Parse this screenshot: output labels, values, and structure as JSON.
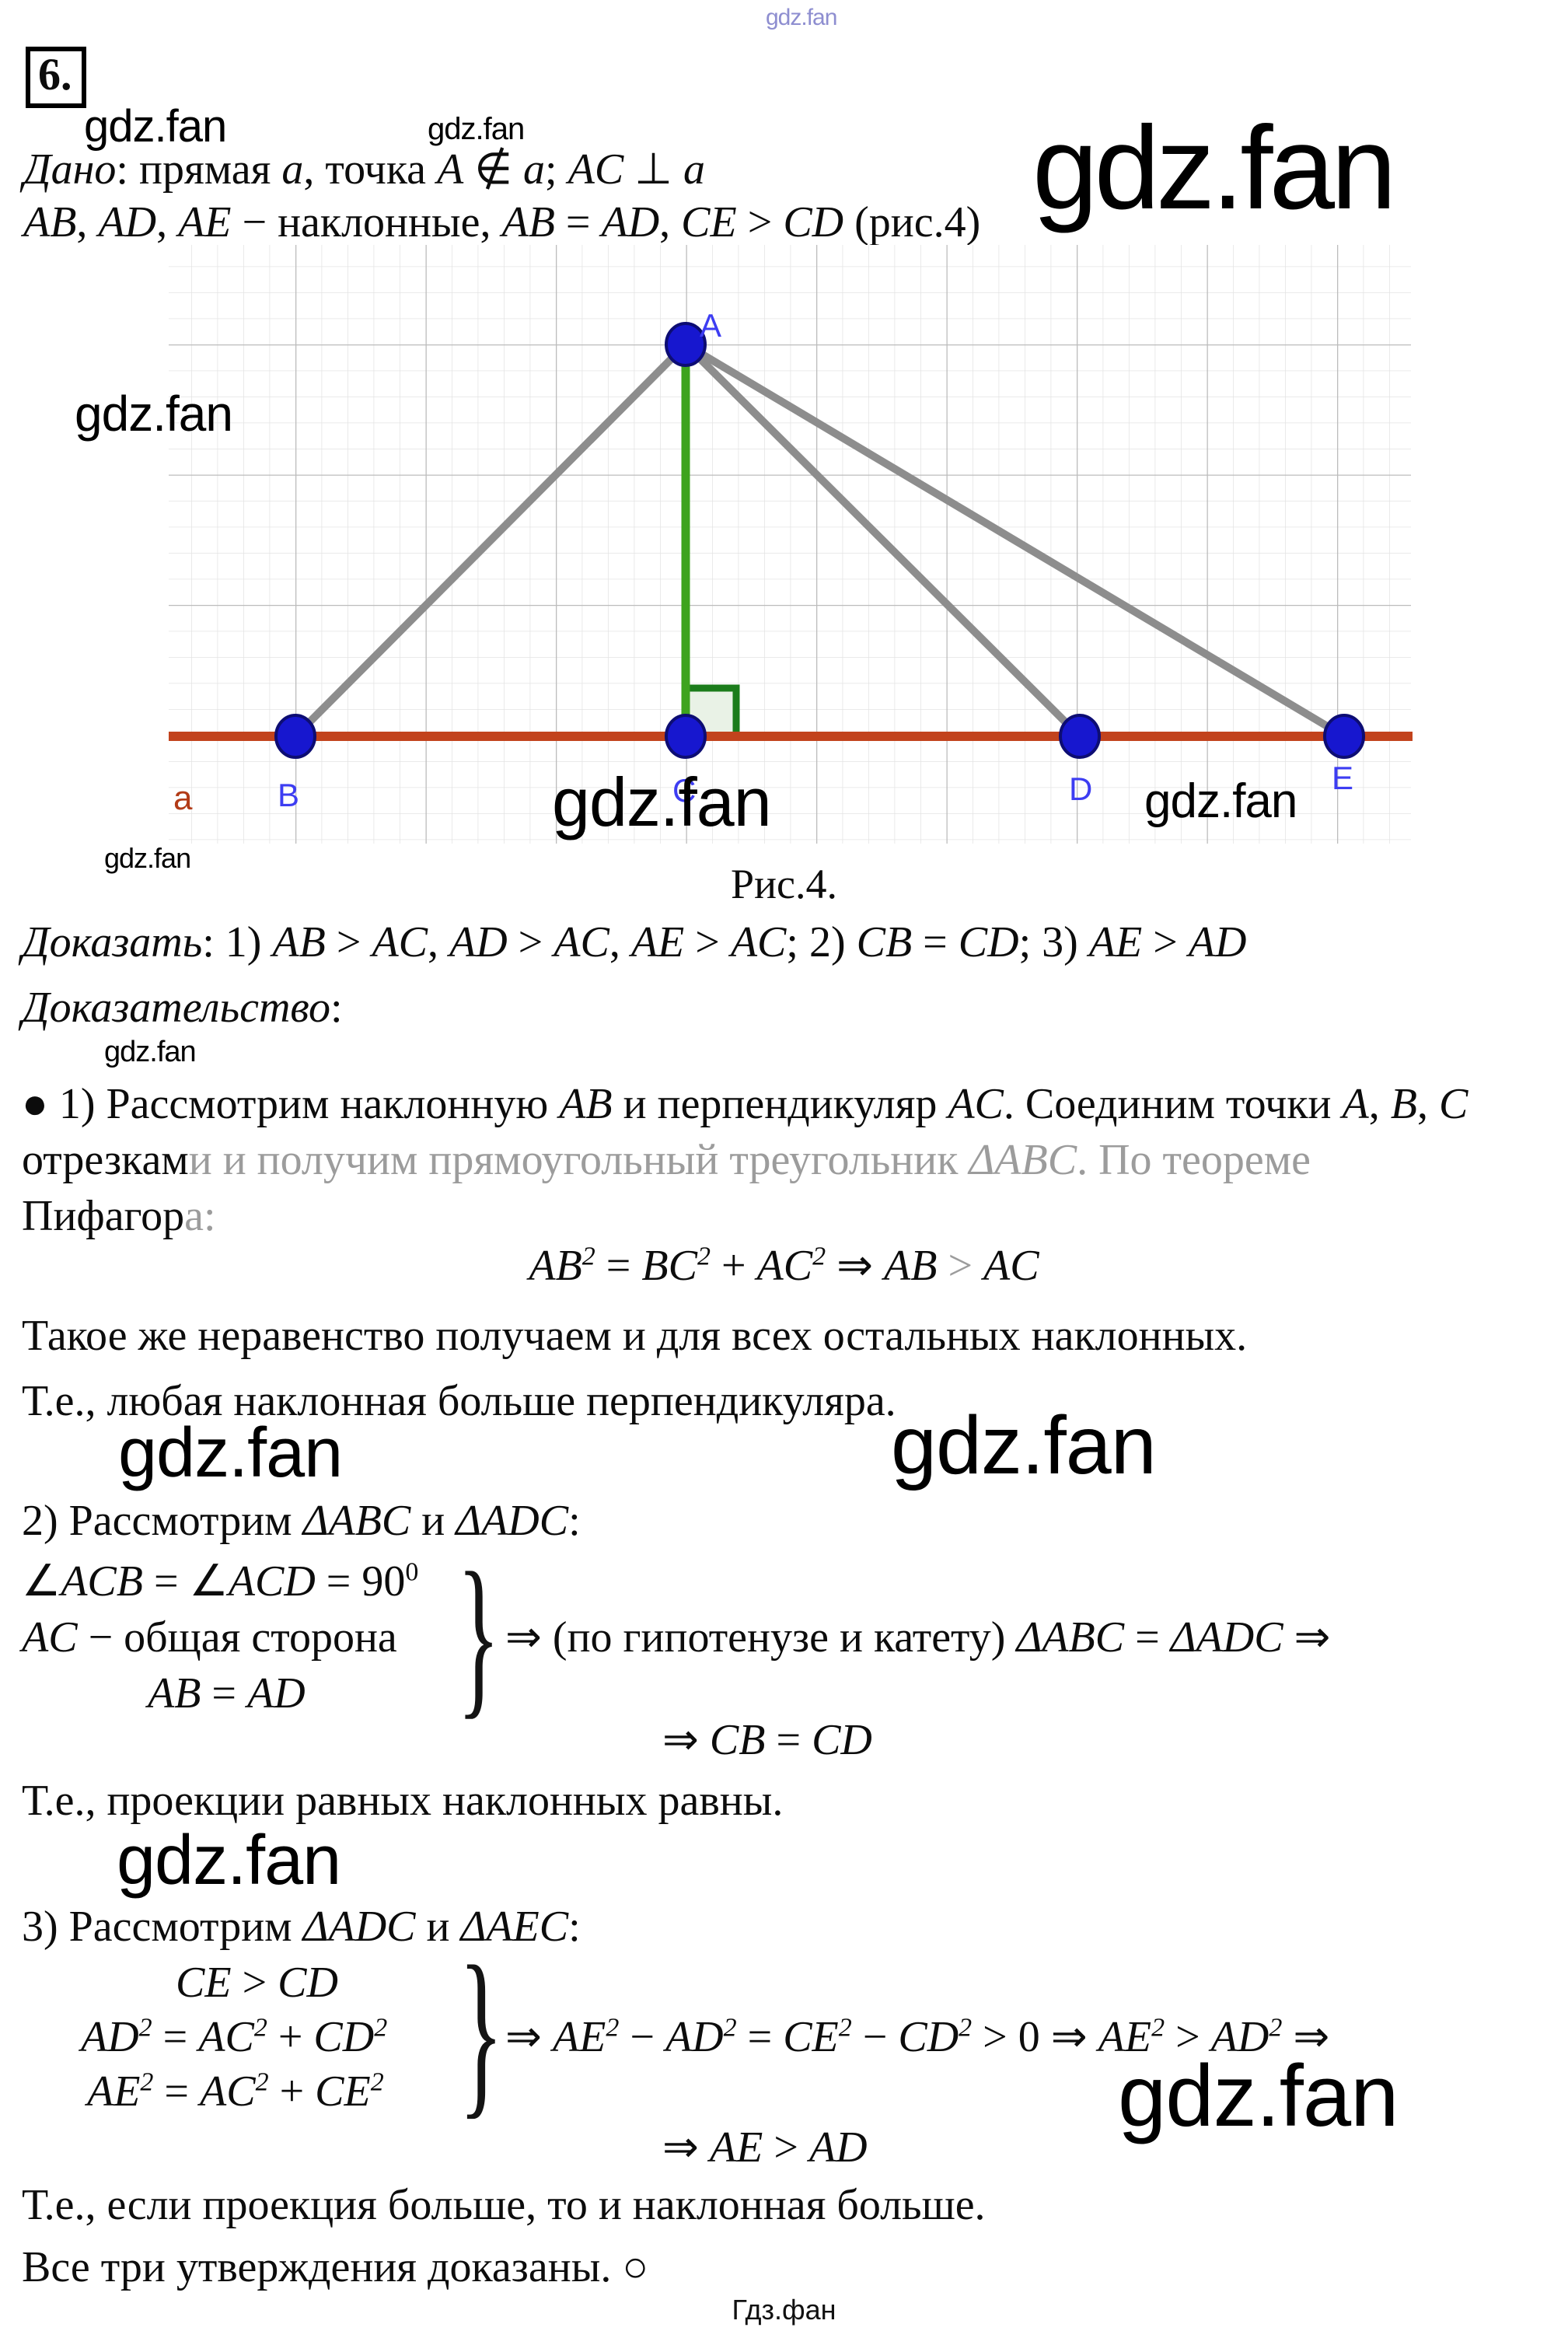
{
  "watermark": {
    "text": "gdz.fan"
  },
  "header": {
    "problem_number": "6.",
    "given_line1": [
      {
        "t": "Дано",
        "c": "it"
      },
      {
        "t": ": прямая "
      },
      {
        "t": "a",
        "c": "it"
      },
      {
        "t": ", точка "
      },
      {
        "t": "A",
        "c": "it"
      },
      {
        "t": " ∉ "
      },
      {
        "t": "a",
        "c": "it"
      },
      {
        "t": "; "
      },
      {
        "t": "AC",
        "c": "it"
      },
      {
        "t": " ⊥ "
      },
      {
        "t": "a",
        "c": "it"
      }
    ],
    "given_line2": [
      {
        "t": "AB",
        "c": "it"
      },
      {
        "t": ", "
      },
      {
        "t": "AD",
        "c": "it"
      },
      {
        "t": ", "
      },
      {
        "t": "AE",
        "c": "it"
      },
      {
        "t": " − наклонные, "
      },
      {
        "t": "AB",
        "c": "it"
      },
      {
        "t": " = "
      },
      {
        "t": "AD",
        "c": "it"
      },
      {
        "t": ", "
      },
      {
        "t": "CE",
        "c": "it"
      },
      {
        "t": " > "
      },
      {
        "t": "CD",
        "c": "it"
      },
      {
        "t": " (рис.4)"
      }
    ]
  },
  "figure": {
    "caption": "Рис.4.",
    "labels": {
      "A": "A",
      "B": "B",
      "C": "C",
      "D": "D",
      "E": "E",
      "line": "a"
    },
    "colors": {
      "line_a": "#c2431d",
      "perpendicular": "#3ea31e",
      "angle_marker": "#1b7c1b",
      "angle_marker_fill": "#e9f2e6",
      "oblique": "#8d8d8d",
      "point": "#1717cf",
      "point_outline": "#0d0d73",
      "point_label": "#3d3df2",
      "line_label": "#b23b17",
      "grid_minor": "#e4e4e4",
      "grid_major": "#bcbcbc"
    }
  },
  "statements": {
    "to_prove": [
      {
        "t": "Доказать",
        "c": "it"
      },
      {
        "t": ": 1) "
      },
      {
        "t": "AB",
        "c": "it"
      },
      {
        "t": " > "
      },
      {
        "t": "AC",
        "c": "it"
      },
      {
        "t": ", "
      },
      {
        "t": "AD",
        "c": "it"
      },
      {
        "t": " > "
      },
      {
        "t": "AC",
        "c": "it"
      },
      {
        "t": ", "
      },
      {
        "t": "AE",
        "c": "it"
      },
      {
        "t": " > "
      },
      {
        "t": "AC",
        "c": "it"
      },
      {
        "t": "; 2) "
      },
      {
        "t": "CB",
        "c": "it"
      },
      {
        "t": " = "
      },
      {
        "t": "CD",
        "c": "it"
      },
      {
        "t": "; 3) "
      },
      {
        "t": "AE",
        "c": "it"
      },
      {
        "t": " > "
      },
      {
        "t": "AD",
        "c": "it"
      }
    ],
    "proof_title": [
      {
        "t": "Доказательство",
        "c": "it"
      },
      {
        "t": ":"
      }
    ]
  },
  "proof": {
    "step1": {
      "line1": [
        {
          "t": "● 1) Рассмотрим наклонную "
        },
        {
          "t": "AB",
          "c": "it"
        },
        {
          "t": " и перпендикуляр "
        },
        {
          "t": "AC",
          "c": "it"
        },
        {
          "t": ". Соединим точки "
        },
        {
          "t": "A",
          "c": "it"
        },
        {
          "t": ", "
        },
        {
          "t": "B",
          "c": "it"
        },
        {
          "t": ", "
        },
        {
          "t": "C",
          "c": "it"
        }
      ],
      "line2": [
        {
          "t": "отрезкам"
        },
        {
          "t": "и и получим прямоугольный треугольник ",
          "c": "gr"
        },
        {
          "t": "ΔABC",
          "c": "gr it"
        },
        {
          "t": ". По теореме",
          "c": "gr"
        }
      ],
      "line3": [
        {
          "t": "Пифагор"
        },
        {
          "t": "а:",
          "c": "gr"
        }
      ],
      "equation": [
        {
          "t": "AB",
          "c": "it"
        },
        {
          "t": "2",
          "c": "sp it"
        },
        {
          "t": " = "
        },
        {
          "t": "BC",
          "c": "it"
        },
        {
          "t": "2",
          "c": "sp it"
        },
        {
          "t": " + "
        },
        {
          "t": "AC",
          "c": "it"
        },
        {
          "t": "2",
          "c": "sp it"
        },
        {
          "t": " ⇒ "
        },
        {
          "t": "AB",
          "c": "it"
        },
        {
          "t": " "
        },
        {
          "t": ">",
          "c": "gr"
        },
        {
          "t": " "
        },
        {
          "t": "AC",
          "c": "it"
        }
      ]
    },
    "para1": "Такое же неравенство получаем и для всех остальных наклонных.",
    "para2": "Т.е., любая наклонная больше перпендикуляра.",
    "step2": {
      "head": [
        {
          "t": "2) Рассмотрим "
        },
        {
          "t": "ΔABC",
          "c": "it"
        },
        {
          "t": " и "
        },
        {
          "t": "ΔADC",
          "c": "it"
        },
        {
          "t": ":"
        }
      ],
      "row1": [
        {
          "t": "∠"
        },
        {
          "t": "ACB",
          "c": "it"
        },
        {
          "t": " = ∠"
        },
        {
          "t": "ACD",
          "c": "it"
        },
        {
          "t": " = 90"
        },
        {
          "t": "0",
          "c": "sp"
        }
      ],
      "row2": [
        {
          "t": "AC",
          "c": "it"
        },
        {
          "t": " − общая сторона"
        }
      ],
      "row3": [
        {
          "t": "AB",
          "c": "it"
        },
        {
          "t": " = "
        },
        {
          "t": "AD",
          "c": "it"
        }
      ],
      "brace": "}",
      "conclusion": [
        {
          "t": "⇒ (по гипотенузе и катету) "
        },
        {
          "t": "ΔABC",
          "c": "it"
        },
        {
          "t": " = "
        },
        {
          "t": "ΔADC",
          "c": "it"
        },
        {
          "t": " ⇒"
        }
      ],
      "result": [
        {
          "t": "⇒ "
        },
        {
          "t": "CB",
          "c": "it"
        },
        {
          "t": " = "
        },
        {
          "t": "CD",
          "c": "it"
        }
      ]
    },
    "para3": "Т.е., проекции равных наклонных равны.",
    "step3": {
      "head": [
        {
          "t": "3) Рассмотрим "
        },
        {
          "t": "ΔADC",
          "c": "it"
        },
        {
          "t": " и "
        },
        {
          "t": "ΔAEC",
          "c": "it"
        },
        {
          "t": ":"
        }
      ],
      "row1": [
        {
          "t": "CE",
          "c": "it"
        },
        {
          "t": " > "
        },
        {
          "t": "CD",
          "c": "it"
        }
      ],
      "row2": [
        {
          "t": "AD",
          "c": "it"
        },
        {
          "t": "2",
          "c": "sp it"
        },
        {
          "t": " = "
        },
        {
          "t": "AC",
          "c": "it"
        },
        {
          "t": "2",
          "c": "sp it"
        },
        {
          "t": " + "
        },
        {
          "t": "CD",
          "c": "it"
        },
        {
          "t": "2",
          "c": "sp it"
        }
      ],
      "row3": [
        {
          "t": "AE",
          "c": "it"
        },
        {
          "t": "2",
          "c": "sp it"
        },
        {
          "t": " = "
        },
        {
          "t": "AC",
          "c": "it"
        },
        {
          "t": "2",
          "c": "sp it"
        },
        {
          "t": " + "
        },
        {
          "t": "CE",
          "c": "it"
        },
        {
          "t": "2",
          "c": "sp it"
        }
      ],
      "brace": "}",
      "conclusion": [
        {
          "t": "⇒ "
        },
        {
          "t": "AE",
          "c": "it"
        },
        {
          "t": "2",
          "c": "sp it"
        },
        {
          "t": " − "
        },
        {
          "t": "AD",
          "c": "it"
        },
        {
          "t": "2",
          "c": "sp it"
        },
        {
          "t": " = "
        },
        {
          "t": "CE",
          "c": "it"
        },
        {
          "t": "2",
          "c": "sp it"
        },
        {
          "t": " − "
        },
        {
          "t": "CD",
          "c": "it"
        },
        {
          "t": "2",
          "c": "sp it"
        },
        {
          "t": " > 0 ⇒ "
        },
        {
          "t": "AE",
          "c": "it"
        },
        {
          "t": "2",
          "c": "sp it"
        },
        {
          "t": " > "
        },
        {
          "t": "AD",
          "c": "it"
        },
        {
          "t": "2",
          "c": "sp it"
        },
        {
          "t": " ⇒"
        }
      ],
      "result": [
        {
          "t": "⇒ "
        },
        {
          "t": "AE",
          "c": "it"
        },
        {
          "t": " > "
        },
        {
          "t": "AD",
          "c": "it"
        }
      ]
    },
    "para4": "Т.е., если проекция больше, то и наклонная больше.",
    "final": "Все три утверждения доказаны. ○"
  },
  "footer": {
    "site": "Гдз.фан"
  }
}
